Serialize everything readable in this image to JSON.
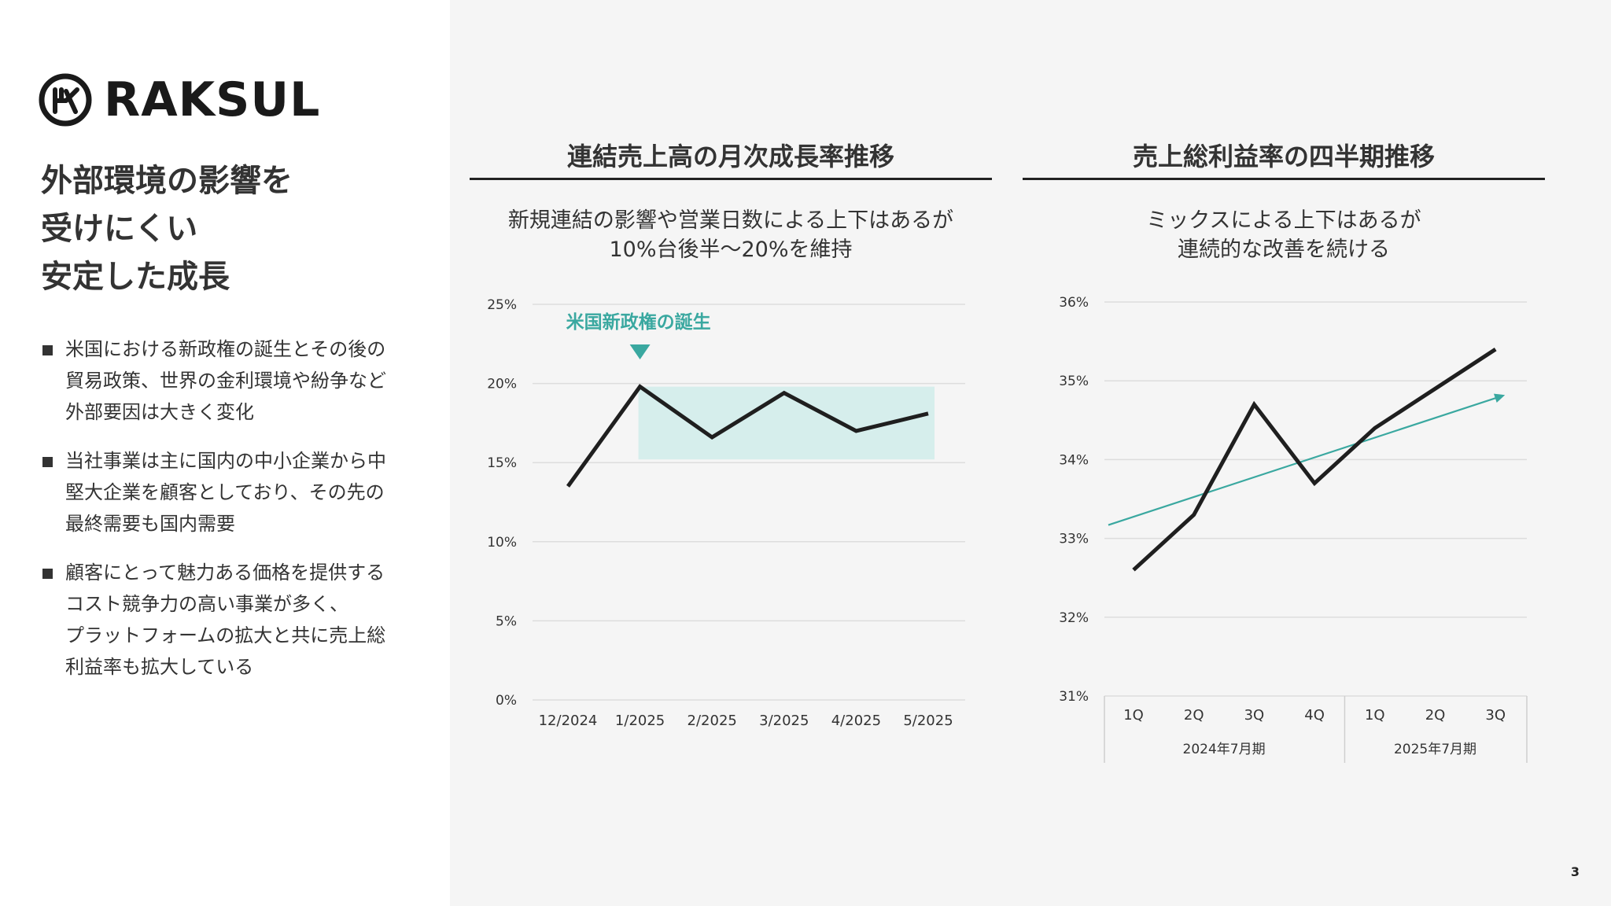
{
  "logo": {
    "text": "RAKSUL"
  },
  "headline": [
    "外部環境の影響を",
    "受けにくい",
    "安定した成長"
  ],
  "bullets": [
    "米国における新政権の誕生とその後の\n貿易政策、世界の金利環境や紛争など\n外部要因は大きく変化",
    "当社事業は主に国内の中小企業から中\n堅大企業を顧客としており、その先の\n最終需要も国内需要",
    "顧客にとって魅力ある価格を提供する\nコスト競争力の高い事業が多く、\nプラットフォームの拡大と共に売上総\n利益率も拡大している"
  ],
  "page_number": "3",
  "colors": {
    "accent": "#3aa8a0",
    "band": "#d6eeec",
    "line": "#1f1f1f",
    "grid": "#dddddd"
  },
  "charts": {
    "left": {
      "title": "連結売上高の月次成長率推移",
      "subtitle_lines": [
        "新規連結の影響や営業日数による上下はあるが",
        "10%台後半〜20%を維持"
      ]
    },
    "right": {
      "title": "売上総利益率の四半期推移",
      "subtitle_lines": [
        "ミックスによる上下はあるが",
        "連続的な改善を続ける"
      ]
    }
  },
  "chart_data": [
    {
      "type": "line",
      "categories": [
        "12/2024",
        "1/2025",
        "2/2025",
        "3/2025",
        "4/2025",
        "5/2025"
      ],
      "series": [
        {
          "values": [
            13.5,
            19.8,
            16.6,
            19.4,
            17.0,
            18.1
          ]
        }
      ],
      "ylim": [
        0,
        25
      ],
      "yticks": [
        "0%",
        "5%",
        "10%",
        "15%",
        "20%",
        "25%"
      ],
      "highlight_band": {
        "from_category": "1/2025",
        "to_category": "5/2025",
        "y_range": [
          15.2,
          19.8
        ]
      },
      "annotation": {
        "text": "米国新政権の誕生",
        "at_category": "1/2025"
      },
      "grid": true
    },
    {
      "type": "line",
      "categories": [
        "1Q",
        "2Q",
        "3Q",
        "4Q",
        "1Q",
        "2Q",
        "3Q"
      ],
      "groups": [
        {
          "label": "2024年7月期",
          "count": 4
        },
        {
          "label": "2025年7月期",
          "count": 3
        }
      ],
      "series": [
        {
          "values": [
            32.6,
            33.3,
            34.7,
            33.7,
            34.4,
            34.9,
            35.4
          ]
        }
      ],
      "trendline": {
        "start": 33.17,
        "end": 34.82
      },
      "ylim": [
        31,
        36
      ],
      "yticks": [
        "31%",
        "32%",
        "33%",
        "34%",
        "35%",
        "36%"
      ],
      "grid": true
    }
  ]
}
